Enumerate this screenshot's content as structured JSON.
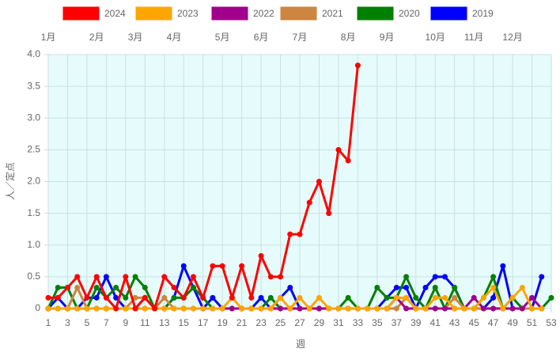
{
  "chart_data": {
    "type": "line",
    "x_label": "週",
    "y_label": "人／定点",
    "x": [
      1,
      2,
      3,
      4,
      5,
      6,
      7,
      8,
      9,
      10,
      11,
      12,
      13,
      14,
      15,
      16,
      17,
      18,
      19,
      20,
      21,
      22,
      23,
      24,
      25,
      26,
      27,
      28,
      29,
      30,
      31,
      32,
      33,
      34,
      35,
      36,
      37,
      38,
      39,
      40,
      41,
      42,
      43,
      44,
      45,
      46,
      47,
      48,
      49,
      50,
      51,
      52,
      53
    ],
    "xlim": [
      1,
      53
    ],
    "xticks": [
      1,
      3,
      5,
      7,
      9,
      11,
      13,
      15,
      17,
      19,
      21,
      23,
      25,
      27,
      29,
      31,
      33,
      35,
      37,
      39,
      41,
      43,
      45,
      47,
      49,
      51,
      53
    ],
    "ylim": [
      0,
      4
    ],
    "yticks": [
      0,
      0.5,
      {
        "value": 1,
        "label": "1.0"
      },
      1.5,
      {
        "value": 2,
        "label": "2.0"
      },
      2.5,
      {
        "value": 3,
        "label": "3.0"
      },
      3.5,
      {
        "value": 4,
        "label": "4.0"
      }
    ],
    "grid": true,
    "legend": "top",
    "plot_background": "#e6fcfc",
    "month_labels": [
      {
        "week": 1,
        "label": "1月"
      },
      {
        "week": 6,
        "label": "2月"
      },
      {
        "week": 10,
        "label": "3月"
      },
      {
        "week": 14,
        "label": "4月"
      },
      {
        "week": 19,
        "label": "5月"
      },
      {
        "week": 23,
        "label": "6月"
      },
      {
        "week": 27,
        "label": "7月"
      },
      {
        "week": 32,
        "label": "8月"
      },
      {
        "week": 36,
        "label": "9月"
      },
      {
        "week": 41,
        "label": "10月"
      },
      {
        "week": 45,
        "label": "11月"
      },
      {
        "week": 49,
        "label": "12月"
      }
    ],
    "series": [
      {
        "name": "2024",
        "color": "#ff0000",
        "values": [
          0.17,
          0.17,
          0.33,
          0.5,
          0.17,
          0.5,
          0.17,
          0,
          0.5,
          0,
          0.17,
          0,
          0.5,
          0.33,
          0.17,
          0.5,
          0.17,
          0.67,
          0.67,
          0.17,
          0.67,
          0.17,
          0.83,
          0.5,
          0.5,
          1.17,
          1.17,
          1.67,
          2.0,
          1.5,
          2.5,
          2.33,
          3.83,
          null,
          null,
          null,
          null,
          null,
          null,
          null,
          null,
          null,
          null,
          null,
          null,
          null,
          null,
          null,
          null,
          null,
          null,
          null,
          null
        ]
      },
      {
        "name": "2023",
        "color": "#ffa500",
        "values": [
          0,
          0,
          0,
          0,
          0,
          0,
          0,
          0,
          0,
          0,
          0,
          0,
          0,
          0,
          0,
          0,
          0,
          0,
          0,
          0.17,
          0,
          0,
          0,
          0,
          0.17,
          0,
          0.17,
          0,
          0.17,
          0,
          0,
          0,
          0,
          0,
          0,
          0,
          0.17,
          0.17,
          0,
          0,
          0.17,
          0.17,
          0,
          0,
          0,
          0.17,
          0.33,
          0,
          0.17,
          0.33,
          0,
          0,
          null
        ]
      },
      {
        "name": "2022",
        "color": "#a0008c",
        "values": [
          0,
          0,
          0,
          0,
          0,
          0,
          0,
          0,
          0,
          0,
          0,
          0,
          0,
          0,
          0,
          0,
          0,
          0,
          0,
          0,
          0,
          0,
          0,
          0,
          0,
          0,
          0,
          0,
          0,
          0,
          0,
          0,
          0,
          0,
          0,
          0,
          0.17,
          0,
          0,
          0,
          0,
          0,
          0,
          0,
          0.17,
          0,
          0,
          0,
          0,
          0,
          0.17,
          0,
          null
        ]
      },
      {
        "name": "2021",
        "color": "#cd853f",
        "values": [
          0,
          0,
          0,
          0.33,
          0,
          0,
          0,
          0,
          0,
          0.17,
          0.17,
          0,
          0.17,
          0,
          0,
          0,
          0,
          0,
          0,
          0,
          0,
          0,
          0,
          0,
          0,
          0,
          0,
          0,
          0,
          0,
          0,
          0,
          0,
          0,
          0,
          0,
          0,
          0.17,
          0,
          0,
          0,
          0,
          0.17,
          0,
          0,
          0,
          0,
          0,
          0,
          0,
          0,
          0,
          null
        ]
      },
      {
        "name": "2020",
        "color": "#008000",
        "values": [
          0,
          0.33,
          0.33,
          0,
          0,
          0.33,
          0.17,
          0.33,
          0.17,
          0.5,
          0.33,
          0,
          0,
          0.17,
          0.17,
          0.33,
          0.17,
          0,
          0,
          0,
          0,
          0,
          0,
          0.17,
          0,
          0,
          0,
          0,
          0,
          0,
          0,
          0.17,
          0,
          0,
          0.33,
          0.17,
          0.17,
          0.5,
          0.17,
          0,
          0.33,
          0,
          0.33,
          0,
          0,
          0.17,
          0.5,
          0,
          0.17,
          0,
          0,
          0,
          0.17
        ]
      },
      {
        "name": "2019",
        "color": "#0000ff",
        "values": [
          0,
          0.17,
          0,
          0,
          0.17,
          0.17,
          0.5,
          0.17,
          0,
          0,
          0.17,
          0,
          0,
          0.17,
          0.67,
          0.33,
          0,
          0.17,
          0,
          0,
          0,
          0,
          0.17,
          0,
          0.17,
          0.33,
          0,
          0,
          0,
          0,
          0,
          0,
          0,
          0,
          0,
          0.17,
          0.33,
          0.33,
          0,
          0.33,
          0.5,
          0.5,
          0.33,
          0,
          0,
          0,
          0.17,
          0.67,
          0,
          0,
          0,
          0.5,
          null
        ]
      }
    ]
  }
}
